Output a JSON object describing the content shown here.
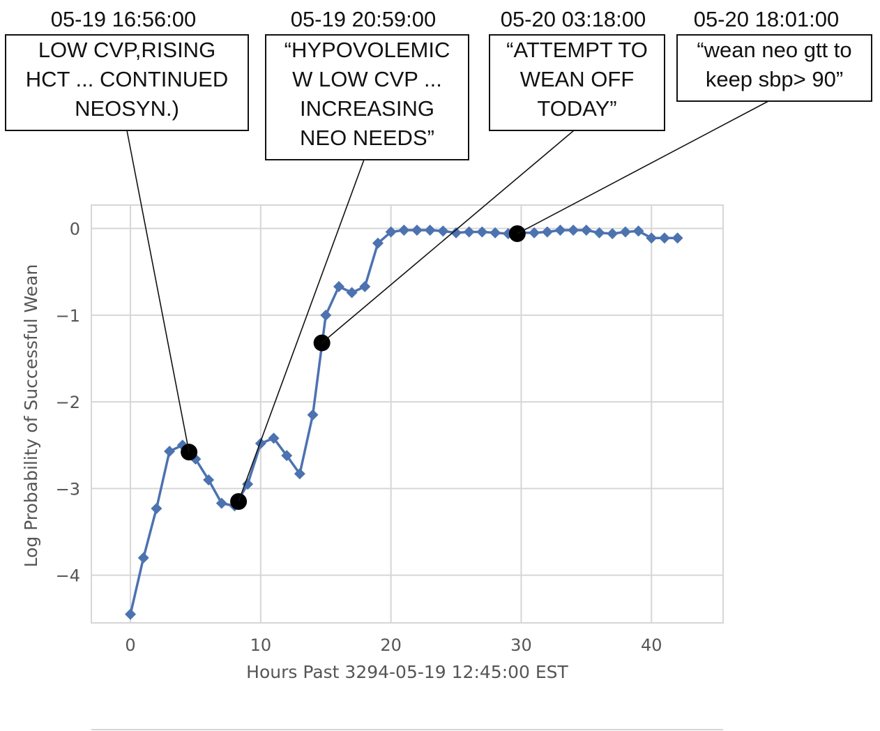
{
  "chart_data": {
    "type": "line",
    "xlabel": "Hours Past 3294-05-19 12:45:00 EST",
    "ylabel": "Log Probability of Successful Wean",
    "xlim": [
      -3,
      45.5
    ],
    "ylim": [
      -4.55,
      0.27
    ],
    "xticks": [
      0,
      10,
      20,
      30,
      40
    ],
    "yticks": [
      0,
      -1,
      -2,
      -3,
      -4
    ],
    "grid": true,
    "line_color": "#4c72b0",
    "highlight_color": "#000000",
    "series": [
      {
        "x": [
          0,
          1,
          2,
          3,
          4,
          5,
          6,
          7,
          8,
          9,
          10,
          11,
          12,
          13,
          14,
          15,
          16,
          17,
          18,
          19,
          20,
          21,
          22,
          23,
          24,
          25,
          26,
          27,
          28,
          29,
          30,
          31,
          32,
          33,
          34,
          35,
          36,
          37,
          38,
          39,
          40,
          41,
          42
        ],
        "values": [
          -4.45,
          -3.8,
          -3.23,
          -2.57,
          -2.5,
          -2.66,
          -2.9,
          -3.17,
          -3.2,
          -2.95,
          -2.48,
          -2.42,
          -2.62,
          -2.83,
          -2.15,
          -1.0,
          -0.67,
          -0.74,
          -0.67,
          -0.17,
          -0.04,
          -0.02,
          -0.02,
          -0.02,
          -0.03,
          -0.05,
          -0.04,
          -0.04,
          -0.05,
          -0.06,
          -0.05,
          -0.05,
          -0.04,
          -0.02,
          -0.02,
          -0.02,
          -0.05,
          -0.06,
          -0.04,
          -0.03,
          -0.11,
          -0.11,
          -0.11
        ]
      }
    ],
    "highlights": [
      {
        "x": 4.5,
        "y": -2.58,
        "time": "05-19 16:56:00",
        "lines": [
          "LOW CVP,RISING",
          "HCT ... CONTINUED",
          "NEOSYN.)"
        ]
      },
      {
        "x": 8.3,
        "y": -3.15,
        "time": "05-19 20:59:00",
        "lines": [
          "“HYPOVOLEMIC",
          "W LOW CVP ...",
          "INCREASING",
          "NEO NEEDS”"
        ]
      },
      {
        "x": 14.7,
        "y": -1.32,
        "time": "05-20 03:18:00",
        "lines": [
          "“ATTEMPT TO",
          "WEAN OFF",
          "TODAY”"
        ]
      },
      {
        "x": 29.7,
        "y": -0.06,
        "time": "05-20 18:01:00",
        "lines": [
          "“wean neo gtt to",
          "keep sbp> 90”"
        ]
      }
    ]
  }
}
